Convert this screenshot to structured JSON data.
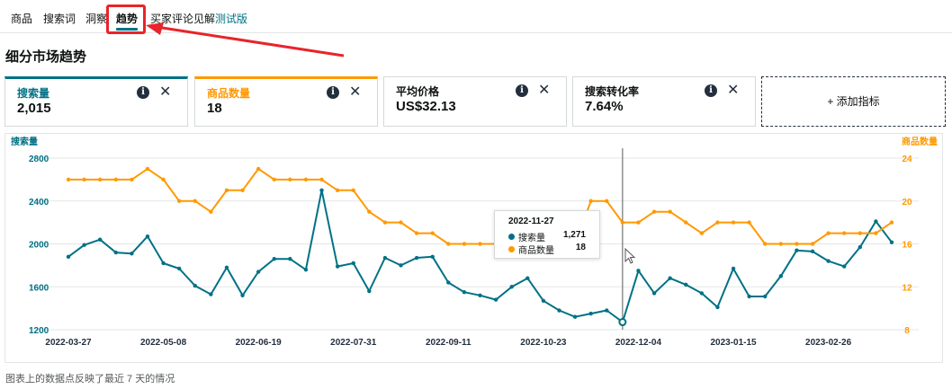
{
  "tabs": [
    {
      "label": "商品",
      "active": false
    },
    {
      "label": "搜索词",
      "active": false
    },
    {
      "label": "洞察",
      "active": false
    },
    {
      "label": "趋势",
      "active": true
    },
    {
      "label": "买家评论见解",
      "active": false
    }
  ],
  "beta_label": "测试版",
  "page_title": "细分市场趋势",
  "metrics": [
    {
      "label": "搜索量",
      "value": "2,015",
      "color": "#007185"
    },
    {
      "label": "商品数量",
      "value": "18",
      "color": "#ff9900"
    },
    {
      "label": "平均价格",
      "value": "US$32.13",
      "color": "#0f1111"
    },
    {
      "label": "搜索转化率",
      "value": "7.64%",
      "color": "#0f1111"
    }
  ],
  "add_metric_label": "+ 添加指标",
  "info_glyph": "i",
  "close_glyph": "✕",
  "colors": {
    "search": "#007185",
    "products": "#ff9900",
    "highlight": "#e8242a"
  },
  "chart_data": {
    "type": "line",
    "x": [
      "2022-03-27",
      "2022-04-03",
      "2022-04-10",
      "2022-04-17",
      "2022-04-24",
      "2022-05-01",
      "2022-05-08",
      "2022-05-15",
      "2022-05-22",
      "2022-05-29",
      "2022-06-05",
      "2022-06-12",
      "2022-06-19",
      "2022-06-26",
      "2022-07-03",
      "2022-07-10",
      "2022-07-17",
      "2022-07-24",
      "2022-07-31",
      "2022-08-07",
      "2022-08-14",
      "2022-08-21",
      "2022-08-28",
      "2022-09-04",
      "2022-09-11",
      "2022-09-18",
      "2022-09-25",
      "2022-10-02",
      "2022-10-09",
      "2022-10-16",
      "2022-10-23",
      "2022-10-30",
      "2022-11-06",
      "2022-11-13",
      "2022-11-20",
      "2022-11-27",
      "2022-12-04",
      "2022-12-11",
      "2022-12-18",
      "2022-12-25",
      "2023-01-01",
      "2023-01-08",
      "2023-01-15",
      "2023-01-22",
      "2023-01-29",
      "2023-02-05",
      "2023-02-12",
      "2023-02-19",
      "2023-02-26",
      "2023-03-05",
      "2023-03-12",
      "2023-03-19",
      "2023-03-26"
    ],
    "xticks": [
      "2022-03-27",
      "2022-05-08",
      "2022-06-19",
      "2022-07-31",
      "2022-09-11",
      "2022-10-23",
      "2022-12-04",
      "2023-01-15",
      "2023-02-26"
    ],
    "series": [
      {
        "name": "搜索量",
        "axis": "left",
        "color": "#007185",
        "values": [
          1880,
          1990,
          2040,
          1920,
          1910,
          2070,
          1820,
          1770,
          1610,
          1530,
          1780,
          1520,
          1740,
          1860,
          1860,
          1760,
          2500,
          1790,
          1820,
          1560,
          1870,
          1800,
          1870,
          1880,
          1640,
          1550,
          1520,
          1480,
          1600,
          1680,
          1470,
          1380,
          1320,
          1350,
          1380,
          1271,
          1750,
          1540,
          1680,
          1620,
          1540,
          1410,
          1770,
          1510,
          1510,
          1700,
          1940,
          1930,
          1840,
          1790,
          1970,
          2210,
          2015
        ]
      },
      {
        "name": "商品数量",
        "axis": "right",
        "color": "#ff9900",
        "values": [
          22,
          22,
          22,
          22,
          22,
          23,
          22,
          20,
          20,
          19,
          21,
          21,
          23,
          22,
          22,
          22,
          22,
          21,
          21,
          19,
          18,
          18,
          17,
          17,
          16,
          16,
          16,
          16,
          16,
          16,
          16,
          16,
          16,
          20,
          20,
          18,
          18,
          19,
          19,
          18,
          17,
          18,
          18,
          18,
          16,
          16,
          16,
          16,
          17,
          17,
          17,
          17,
          18
        ]
      }
    ],
    "left_axis": {
      "label": "搜索量",
      "min": 1200,
      "max": 2800,
      "ticks": [
        1200,
        1600,
        2000,
        2400,
        2800
      ]
    },
    "right_axis": {
      "label": "商品数量",
      "min": 8,
      "max": 24,
      "ticks": [
        8,
        12,
        16,
        20,
        24
      ]
    },
    "hover_index": 35,
    "tooltip": {
      "date": "2022-11-27",
      "rows": [
        {
          "name": "搜索量",
          "value": "1,271"
        },
        {
          "name": "商品数量",
          "value": "18"
        }
      ]
    }
  },
  "footnote": "图表上的数据点反映了最近 7 天的情况"
}
